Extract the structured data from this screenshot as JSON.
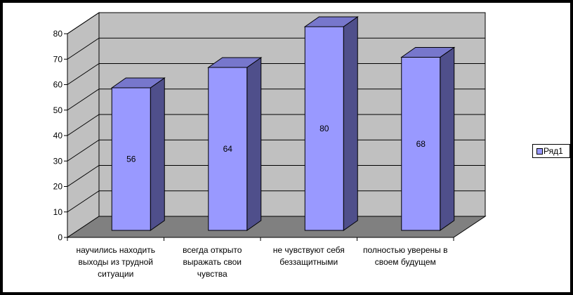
{
  "chart_data": {
    "type": "bar",
    "categories": [
      [
        "научились находить",
        "выходы из трудной",
        "ситуации"
      ],
      [
        "всегда открыто",
        "выражать свои",
        "чувства"
      ],
      [
        "не чувствуют себя",
        "беззащитными"
      ],
      [
        "полностью уверены в",
        "своем будущем"
      ]
    ],
    "series": [
      {
        "name": "Ряд1",
        "values": [
          56,
          64,
          80,
          68
        ]
      }
    ],
    "data_labels": [
      "56",
      "64",
      "80",
      "68"
    ],
    "y_ticks": [
      0,
      10,
      20,
      30,
      40,
      50,
      60,
      70,
      80
    ],
    "ylim": [
      0,
      80
    ],
    "grid": true,
    "legend": "right",
    "style": "3d-column",
    "colors": {
      "bar_front": "#9999ff",
      "bar_side": "#4f4f8b",
      "bar_top": "#7777cc",
      "wall": "#c0c0c0",
      "floor": "#808080"
    }
  }
}
